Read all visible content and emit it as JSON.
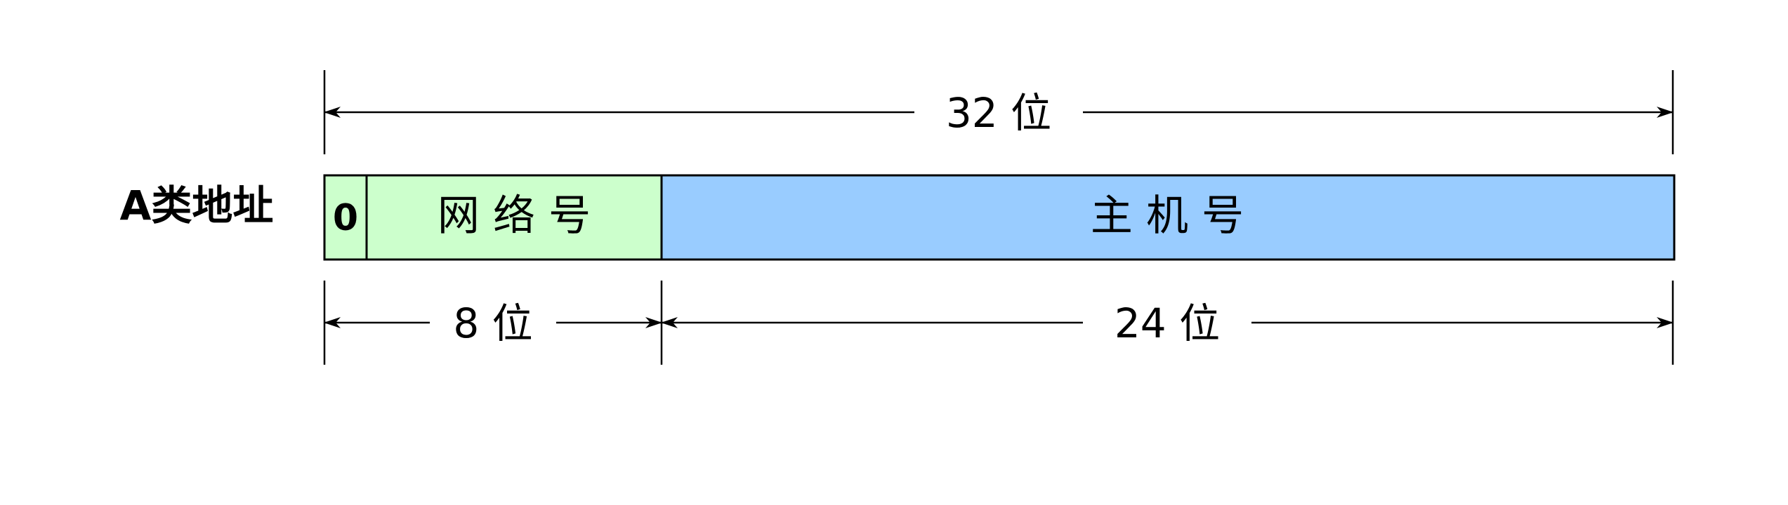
{
  "row_label": "A类地址",
  "fields": {
    "leading_bit": "0",
    "network": "网 络 号",
    "host": "主 机 号"
  },
  "dimensions": {
    "total": "32 位",
    "network": "8 位",
    "host": "24 位"
  },
  "colors": {
    "network_fill": "#ccffcc",
    "host_fill": "#99ccff",
    "stroke": "#000000"
  }
}
